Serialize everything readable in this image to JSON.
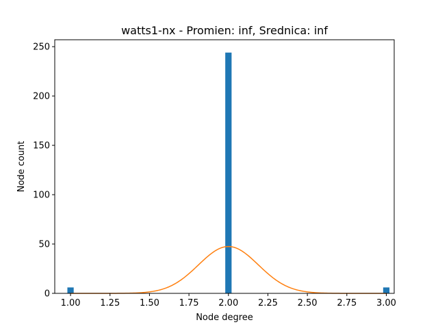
{
  "chart_data": {
    "type": "bar",
    "title": "watts1-nx - Promien: inf, Srednica: inf",
    "xlabel": "Node degree",
    "ylabel": "Node count",
    "xlim": [
      0.9,
      3.05
    ],
    "ylim": [
      0,
      257
    ],
    "xticks": [
      1.0,
      1.25,
      1.5,
      1.75,
      2.0,
      2.25,
      2.5,
      2.75,
      3.0
    ],
    "xtick_labels": [
      "1.00",
      "1.25",
      "1.50",
      "1.75",
      "2.00",
      "2.25",
      "2.50",
      "2.75",
      "3.00"
    ],
    "yticks": [
      0,
      50,
      100,
      150,
      200,
      250
    ],
    "ytick_labels": [
      "0",
      "50",
      "100",
      "150",
      "200",
      "250"
    ],
    "grid": false,
    "series": [
      {
        "kind": "histogram",
        "color": "#1f77b4",
        "bin_width": 0.04,
        "bars": [
          {
            "x": 1.0,
            "value": 6
          },
          {
            "x": 2.0,
            "value": 244
          },
          {
            "x": 3.0,
            "value": 6
          }
        ]
      },
      {
        "kind": "curve",
        "color": "#ff7f0e",
        "mean": 2.0,
        "std": 0.19,
        "peak": 47.5,
        "x_range": [
          1.0,
          3.0
        ]
      }
    ]
  }
}
